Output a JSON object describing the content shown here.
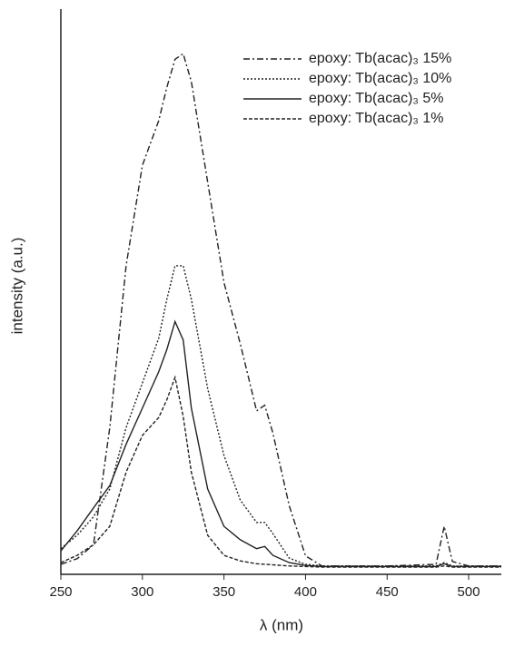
{
  "chart_data": {
    "type": "line",
    "x_label": "λ (nm)",
    "y_label": "intensity (a.u.)",
    "x": [
      250,
      260,
      270,
      280,
      290,
      300,
      310,
      315,
      320,
      325,
      330,
      340,
      350,
      360,
      370,
      375,
      380,
      390,
      400,
      410,
      450,
      480,
      485,
      490,
      500,
      520
    ],
    "series": [
      {
        "name": "epoxy: Tb(acac)₃ 15%",
        "color": "#222",
        "dash": "7 3 2 3",
        "values": [
          0.5,
          1.5,
          4,
          25,
          54,
          72,
          80,
          86,
          91,
          92,
          87,
          69,
          51,
          40,
          28,
          29,
          24,
          11,
          2,
          0.2,
          0.2,
          0.5,
          7.3,
          1,
          0.2,
          0.2
        ]
      },
      {
        "name": "epoxy: Tb(acac)₃ 10%",
        "color": "#222",
        "dash": "2 2",
        "values": [
          3.3,
          5.7,
          9,
          14,
          25,
          33,
          41,
          48,
          54,
          54,
          48,
          32,
          20,
          12,
          8,
          8,
          6,
          1.6,
          0.5,
          0.2,
          0.2,
          0.2,
          0.8,
          0.2,
          0.2,
          0.2
        ]
      },
      {
        "name": "epoxy: Tb(acac)₃ 5%",
        "color": "#222",
        "dash": "none",
        "values": [
          2.9,
          6.5,
          10.6,
          14.6,
          22,
          28.5,
          35,
          39,
          44,
          40.7,
          28.5,
          14,
          7.3,
          4.9,
          3.3,
          3.7,
          2.1,
          0.8,
          0.3,
          0.1,
          0.1,
          0.1,
          0.6,
          0.1,
          0.1,
          0.1
        ]
      },
      {
        "name": "epoxy: Tb(acac)₃ 1%",
        "color": "#222",
        "dash": "4 2",
        "values": [
          0.8,
          2.1,
          4,
          7.3,
          17,
          23.6,
          26.8,
          30,
          34,
          27,
          17,
          5.7,
          2.1,
          1.1,
          0.6,
          0.5,
          0.4,
          0.2,
          0.1,
          0,
          0,
          0,
          0.2,
          0,
          0,
          0
        ]
      }
    ],
    "xlim": [
      250,
      520
    ],
    "xticks": [
      250,
      300,
      350,
      400,
      450,
      500
    ],
    "ylim": [
      0,
      100
    ],
    "legend": "upper right"
  }
}
